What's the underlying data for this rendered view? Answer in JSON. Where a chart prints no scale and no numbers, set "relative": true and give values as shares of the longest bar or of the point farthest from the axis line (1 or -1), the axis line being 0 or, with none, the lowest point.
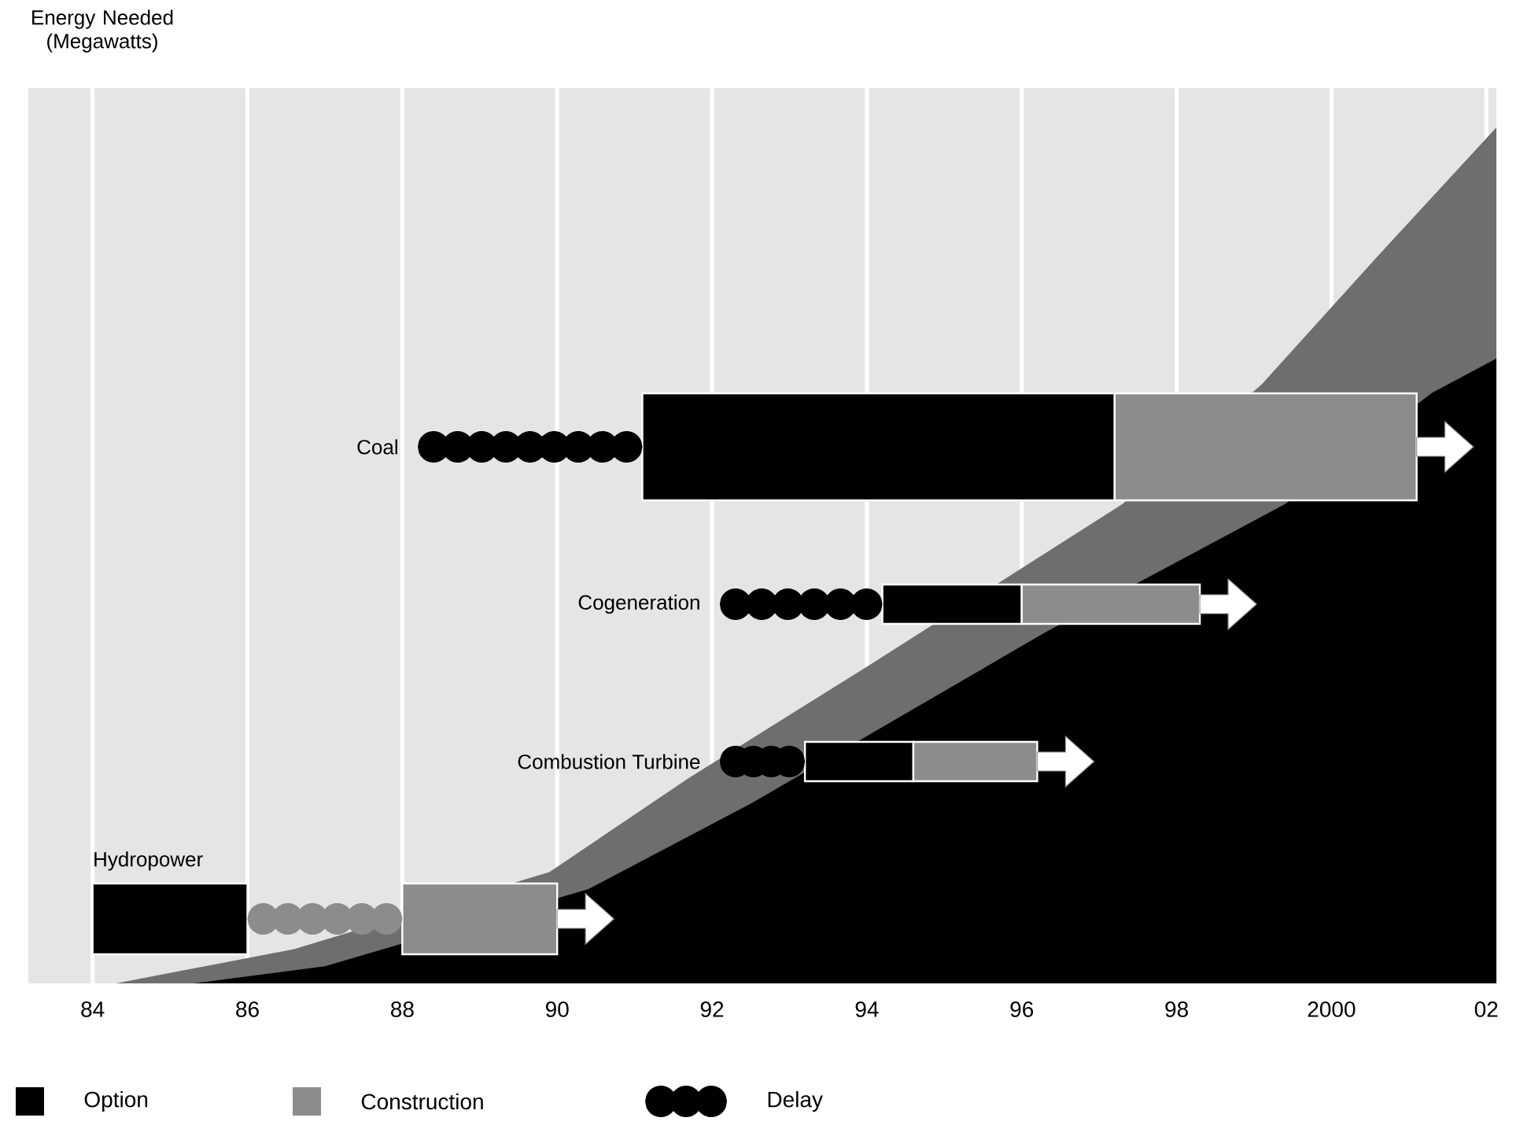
{
  "chart_data": [
    {
      "type": "area",
      "relative": true,
      "ylabel": "Energy Needed (Megawatts)",
      "xlim": [
        1983.17,
        2002.13
      ],
      "xticks": [
        {
          "value": 1984,
          "label": "84"
        },
        {
          "value": 1986,
          "label": "86"
        },
        {
          "value": 1988,
          "label": "88"
        },
        {
          "value": 1990,
          "label": "90"
        },
        {
          "value": 1992,
          "label": "92"
        },
        {
          "value": 1994,
          "label": "94"
        },
        {
          "value": 1996,
          "label": "96"
        },
        {
          "value": 1998,
          "label": "98"
        },
        {
          "value": 2000,
          "label": "2000"
        },
        {
          "value": 2002,
          "label": "02"
        }
      ],
      "grid": "x",
      "series": [
        {
          "color": "#6e6e6e",
          "x": [
            1984.3,
            1986.6,
            1989.9,
            1991.7,
            1994.0,
            1997.3,
            1999.1,
            2000.6,
            2002.13
          ],
          "values": [
            0,
            0.04,
            0.13,
            0.24,
            0.37,
            0.56,
            0.7,
            0.85,
            1
          ]
        },
        {
          "color": "#000000",
          "x": [
            1985.3,
            1987.0,
            1990.4,
            1992.5,
            1996.3,
            1999.4,
            2001.3,
            2002.13
          ],
          "values": [
            0,
            0.02,
            0.11,
            0.21,
            0.41,
            0.56,
            0.69,
            0.73
          ]
        }
      ]
    },
    {
      "type": "bar",
      "orientation": "horizontal",
      "categories": [
        "Coal",
        "Cogeneration",
        "Combustion Turbine",
        "Hydropower"
      ],
      "xlim": [
        1983.17,
        2002.13
      ],
      "legend": "bottom",
      "series": [
        {
          "name": "Option",
          "color": "#000000",
          "base": [
            1991.1,
            1994.2,
            1993.2,
            1984
          ],
          "values": [
            6.1,
            1.8,
            1.4,
            2
          ]
        },
        {
          "name": "Construction",
          "color": "#8c8c8c",
          "base": [
            1997.2,
            1996.0,
            1994.6,
            1988
          ],
          "values": [
            3.9,
            2.3,
            1.6,
            2
          ]
        },
        {
          "name": "Delay",
          "color": "#000000",
          "colors": [
            "#000000",
            "#000000",
            "#000000",
            "#8c8c8c"
          ],
          "marker": "circle",
          "base": [
            1988.2,
            1992.1,
            1992.1,
            1986
          ],
          "values": [
            2.9,
            2.1,
            1.1,
            2
          ]
        }
      ]
    }
  ]
}
